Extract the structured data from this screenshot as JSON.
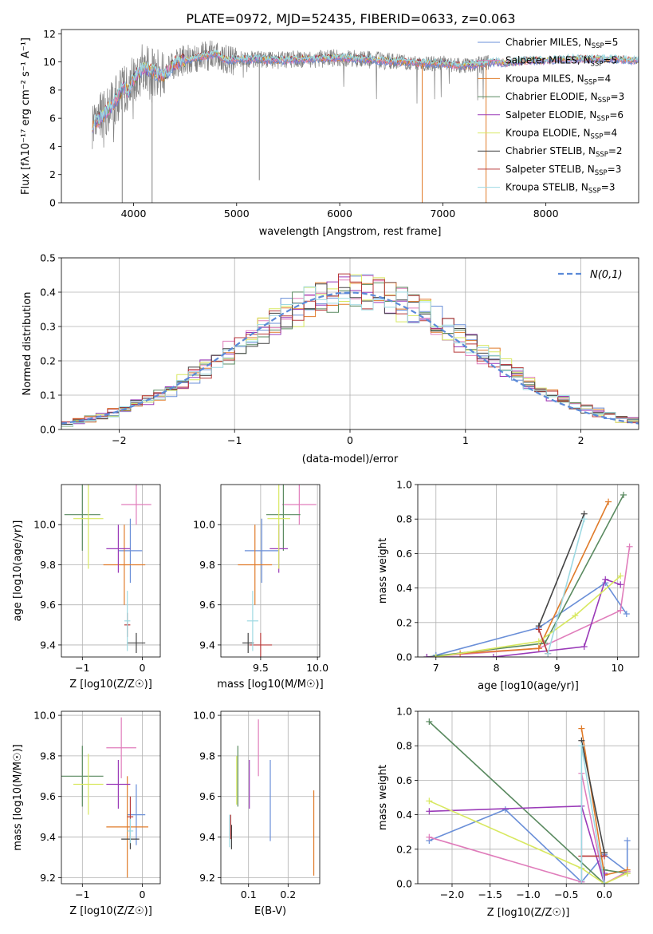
{
  "figure_title": "PLATE=0972, MJD=52435, FIBERID=0633, z=0.063",
  "colors": {
    "spectrum_data": "#808080",
    "gaussian": "#5b8ad8",
    "grid": "#b0b0b0",
    "models": [
      "#6a8fd8",
      "#e07dbb",
      "#e07b2a",
      "#5a8a60",
      "#9a3ab8",
      "#d8e860",
      "#444444",
      "#b83a3a",
      "#9dd9e2"
    ]
  },
  "chart_data": [
    {
      "id": "spectrum",
      "type": "line",
      "title": "PLATE=0972, MJD=52435, FIBERID=0633, z=0.063",
      "xlabel": "wavelength [Angstrom, rest frame]",
      "ylabel": "Flux [fλ10⁻¹⁷ erg cm⁻² s⁻¹ A⁻¹]",
      "xlim": [
        3300,
        8900
      ],
      "ylim": [
        0,
        12.3
      ],
      "xticks": [
        4000,
        5000,
        6000,
        7000,
        8000
      ],
      "yticks": [
        0,
        2,
        4,
        6,
        8,
        10,
        12
      ],
      "grid": false,
      "legend_position": "upper right",
      "legend": [
        {
          "prefix": "Chabrier MILES, N",
          "sub": "SSP",
          "suffix": "=5"
        },
        {
          "prefix": "Salpeter MILES, N",
          "sub": "SSP",
          "suffix": "=5"
        },
        {
          "prefix": "Kroupa MILES, N",
          "sub": "SSP",
          "suffix": "=4"
        },
        {
          "prefix": "Chabrier ELODIE, N",
          "sub": "SSP",
          "suffix": "=3"
        },
        {
          "prefix": "Salpeter ELODIE, N",
          "sub": "SSP",
          "suffix": "=6"
        },
        {
          "prefix": "Kroupa ELODIE, N",
          "sub": "SSP",
          "suffix": "=4"
        },
        {
          "prefix": "Chabrier STELIB, N",
          "sub": "SSP",
          "suffix": "=2"
        },
        {
          "prefix": "Salpeter STELIB, N",
          "sub": "SSP",
          "suffix": "=3"
        },
        {
          "prefix": "Kroupa STELIB, N",
          "sub": "SSP",
          "suffix": "=3"
        }
      ],
      "continuum_model": {
        "x": [
          3600,
          3700,
          3800,
          3850,
          3900,
          3950,
          4000,
          4100,
          4200,
          4300,
          4400,
          4500,
          4600,
          4700,
          4800,
          4900,
          5000,
          5200,
          5400,
          5600,
          5800,
          6000,
          6200,
          6400,
          6600,
          6800,
          7000,
          7200,
          7400,
          7500,
          7600,
          7800,
          8000,
          8200,
          8400,
          8600,
          8900
        ],
        "y": [
          5.5,
          6.2,
          7.0,
          7.5,
          8.3,
          7.9,
          8.8,
          9.6,
          9.3,
          9.0,
          9.9,
          10.1,
          10.3,
          10.4,
          10.6,
          10.1,
          10.2,
          10.2,
          10.1,
          10.2,
          10.2,
          10.3,
          10.2,
          10.1,
          10.0,
          9.9,
          9.9,
          9.7,
          9.9,
          10.0,
          9.9,
          10.1,
          10.1,
          10.2,
          10.2,
          10.2,
          10.1
        ]
      },
      "absorption_dips": [
        {
          "x": 3890,
          "y": 0.0
        },
        {
          "x": 4180,
          "y": 0.0
        },
        {
          "x": 5220,
          "y": 1.6
        },
        {
          "x": 6800,
          "y": 1.2
        },
        {
          "x": 6800,
          "y": 0.0,
          "series": 2
        },
        {
          "x": 7420,
          "y": 0.0,
          "series": 2
        }
      ]
    },
    {
      "id": "residual-histogram",
      "type": "line",
      "xlabel": "(data-model)/error",
      "ylabel": "Normed distribution",
      "xlim": [
        -2.5,
        2.5
      ],
      "ylim": [
        0,
        0.5
      ],
      "xticks": [
        -2,
        -1,
        0,
        1,
        2
      ],
      "yticks": [
        0.0,
        0.1,
        0.2,
        0.3,
        0.4,
        0.5
      ],
      "grid": true,
      "legend_position": "upper right",
      "legend": [
        {
          "label": "N(0,1)",
          "style": "dashed"
        }
      ],
      "bin_width": 0.1,
      "reference_curve": "standard normal density"
    },
    {
      "id": "age-vs-z",
      "type": "scatter",
      "xlabel": "Z [log10(Z/Z☉)]",
      "ylabel": "age [log10(age/yr)]",
      "xlim": [
        -1.35,
        0.3
      ],
      "ylim": [
        9.34,
        10.2
      ],
      "xticks": [
        -1,
        0
      ],
      "yticks": [
        9.4,
        9.6,
        9.8,
        10.0
      ],
      "grid": true,
      "points": [
        {
          "series": 0,
          "x": -0.2,
          "y": 9.87,
          "xerr": 0.2,
          "yerr": 0.16
        },
        {
          "series": 1,
          "x": -0.1,
          "y": 10.1,
          "xerr": 0.25,
          "yerr": 0.1
        },
        {
          "series": 2,
          "x": -0.3,
          "y": 9.8,
          "xerr": 0.35,
          "yerr": 0.2
        },
        {
          "series": 3,
          "x": -1.0,
          "y": 10.05,
          "xerr": 0.3,
          "yerr": 0.18
        },
        {
          "series": 4,
          "x": -0.4,
          "y": 9.88,
          "xerr": 0.2,
          "yerr": 0.12
        },
        {
          "series": 5,
          "x": -0.9,
          "y": 10.03,
          "xerr": 0.25,
          "yerr": 0.25
        },
        {
          "series": 6,
          "x": -0.1,
          "y": 9.41,
          "xerr": 0.15,
          "yerr": 0.05
        },
        {
          "series": 7,
          "x": -0.25,
          "y": 9.5,
          "xerr": 0.05,
          "yerr": 0.06
        },
        {
          "series": 8,
          "x": -0.25,
          "y": 9.52,
          "xerr": 0.05,
          "yerr": 0.15
        }
      ]
    },
    {
      "id": "age-vs-mass",
      "type": "scatter",
      "xlabel": "mass [log10(M/M☉)]",
      "ylabel": "",
      "xlim": [
        9.15,
        10.02
      ],
      "ylim": [
        9.34,
        10.2
      ],
      "xticks": [
        9.5,
        10.0
      ],
      "yticks": [
        9.4,
        9.6,
        9.8,
        10.0
      ],
      "grid": true,
      "points": [
        {
          "series": 0,
          "x": 9.51,
          "y": 9.87,
          "xerr": 0.15,
          "yerr": 0.16
        },
        {
          "series": 1,
          "x": 9.84,
          "y": 10.1,
          "xerr": 0.15,
          "yerr": 0.1
        },
        {
          "series": 2,
          "x": 9.45,
          "y": 9.8,
          "xerr": 0.15,
          "yerr": 0.2
        },
        {
          "series": 3,
          "x": 9.7,
          "y": 10.05,
          "xerr": 0.15,
          "yerr": 0.18
        },
        {
          "series": 4,
          "x": 9.66,
          "y": 9.88,
          "xerr": 0.08,
          "yerr": 0.12
        },
        {
          "series": 5,
          "x": 9.66,
          "y": 10.03,
          "xerr": 0.1,
          "yerr": 0.25
        },
        {
          "series": 6,
          "x": 9.39,
          "y": 9.41,
          "xerr": 0.05,
          "yerr": 0.05
        },
        {
          "series": 7,
          "x": 9.5,
          "y": 9.4,
          "xerr": 0.1,
          "yerr": 0.06
        },
        {
          "series": 8,
          "x": 9.43,
          "y": 9.52,
          "xerr": 0.05,
          "yerr": 0.15
        }
      ]
    },
    {
      "id": "mass-weight-vs-age",
      "type": "line",
      "xlabel": "age [log10(age/yr)]",
      "ylabel": "mass weight",
      "xlim": [
        6.7,
        10.35
      ],
      "ylim": [
        0,
        1.0
      ],
      "xticks": [
        7,
        8,
        9,
        10
      ],
      "yticks": [
        0.0,
        0.2,
        0.4,
        0.6,
        0.8,
        1.0
      ],
      "grid": true,
      "series": [
        {
          "index": 0,
          "x": [
            7.0,
            8.7,
            9.8,
            10.15
          ],
          "y": [
            0.01,
            0.17,
            0.43,
            0.25
          ]
        },
        {
          "index": 1,
          "x": [
            6.85,
            8.7,
            10.05,
            10.2
          ],
          "y": [
            0.0,
            0.05,
            0.27,
            0.64
          ]
        },
        {
          "index": 2,
          "x": [
            7.4,
            8.7,
            9.85
          ],
          "y": [
            0.02,
            0.05,
            0.9
          ]
        },
        {
          "index": 3,
          "x": [
            6.85,
            8.8,
            10.1
          ],
          "y": [
            0.0,
            0.08,
            0.94
          ]
        },
        {
          "index": 4,
          "x": [
            6.85,
            7.95,
            9.45,
            9.8,
            10.05
          ],
          "y": [
            0.0,
            0.0,
            0.06,
            0.45,
            0.42
          ]
        },
        {
          "index": 5,
          "x": [
            7.0,
            8.7,
            9.3,
            10.05
          ],
          "y": [
            0.0,
            0.09,
            0.24,
            0.47
          ]
        },
        {
          "index": 6,
          "x": [
            8.7,
            9.45
          ],
          "y": [
            0.18,
            0.83
          ]
        },
        {
          "index": 7,
          "x": [
            8.7,
            8.85
          ],
          "y": [
            0.16,
            0.02
          ]
        },
        {
          "index": 8,
          "x": [
            8.85,
            9.45
          ],
          "y": [
            0.02,
            0.8
          ]
        }
      ]
    },
    {
      "id": "mass-vs-z",
      "type": "scatter",
      "xlabel": "Z [log10(Z/Z☉)]",
      "ylabel": "mass [log10(M/M☉)]",
      "xlim": [
        -1.35,
        0.3
      ],
      "ylim": [
        9.17,
        10.02
      ],
      "xticks": [
        -1,
        0
      ],
      "yticks": [
        9.2,
        9.4,
        9.6,
        9.8,
        10.0
      ],
      "grid": true,
      "points": [
        {
          "series": 0,
          "x": -0.1,
          "y": 9.51,
          "xerr": 0.15,
          "yerr": 0.15
        },
        {
          "series": 1,
          "x": -0.35,
          "y": 9.84,
          "xerr": 0.25,
          "yerr": 0.15
        },
        {
          "series": 2,
          "x": -0.25,
          "y": 9.45,
          "xerr": 0.35,
          "yerr": 0.25
        },
        {
          "series": 3,
          "x": -1.0,
          "y": 9.7,
          "xerr": 0.35,
          "yerr": 0.15
        },
        {
          "series": 4,
          "x": -0.4,
          "y": 9.66,
          "xerr": 0.2,
          "yerr": 0.12
        },
        {
          "series": 5,
          "x": -0.9,
          "y": 9.66,
          "xerr": 0.25,
          "yerr": 0.15
        },
        {
          "series": 6,
          "x": -0.2,
          "y": 9.39,
          "xerr": 0.15,
          "yerr": 0.05
        },
        {
          "series": 7,
          "x": -0.2,
          "y": 9.5,
          "xerr": 0.05,
          "yerr": 0.1
        },
        {
          "series": 8,
          "x": -0.2,
          "y": 9.43,
          "xerr": 0.05,
          "yerr": 0.06
        }
      ]
    },
    {
      "id": "mass-vs-ebv",
      "type": "scatter",
      "xlabel": "E(B-V)",
      "ylabel": "",
      "xlim": [
        0.03,
        0.28
      ],
      "ylim": [
        9.17,
        10.02
      ],
      "xticks": [
        0.1,
        0.2
      ],
      "yticks": [
        9.2,
        9.4,
        9.6,
        9.8,
        10.0
      ],
      "grid": true,
      "points": [
        {
          "series": 0,
          "x": 0.155,
          "y": 9.58,
          "xerr": 0,
          "yerr": 0.2
        },
        {
          "series": 1,
          "x": 0.125,
          "y": 9.84,
          "xerr": 0,
          "yerr": 0.14
        },
        {
          "series": 2,
          "x": 0.265,
          "y": 9.42,
          "xerr": 0,
          "yerr": 0.21
        },
        {
          "series": 3,
          "x": 0.073,
          "y": 9.7,
          "xerr": 0,
          "yerr": 0.15
        },
        {
          "series": 4,
          "x": 0.102,
          "y": 9.66,
          "xerr": 0,
          "yerr": 0.12
        },
        {
          "series": 5,
          "x": 0.07,
          "y": 9.68,
          "xerr": 0,
          "yerr": 0.12
        },
        {
          "series": 6,
          "x": 0.057,
          "y": 9.4,
          "xerr": 0,
          "yerr": 0.06
        },
        {
          "series": 7,
          "x": 0.055,
          "y": 9.45,
          "xerr": 0,
          "yerr": 0.06
        },
        {
          "series": 8,
          "x": 0.052,
          "y": 9.43,
          "xerr": 0,
          "yerr": 0.08
        }
      ]
    },
    {
      "id": "mass-weight-vs-z",
      "type": "line",
      "xlabel": "Z [log10(Z/Z☉)]",
      "ylabel": "mass weight",
      "xlim": [
        -2.45,
        0.45
      ],
      "ylim": [
        0,
        1.0
      ],
      "xticks": [
        -2.0,
        -1.5,
        -1.0,
        -0.5,
        0.0
      ],
      "yticks": [
        0.0,
        0.2,
        0.4,
        0.6,
        0.8,
        1.0
      ],
      "grid": true,
      "series": [
        {
          "index": 0,
          "x": [
            -2.3,
            -1.3,
            -0.3,
            0.0,
            0.3,
            0.3
          ],
          "y": [
            0.25,
            0.43,
            0.01,
            0.17,
            0.07,
            0.25
          ]
        },
        {
          "index": 1,
          "x": [
            -2.3,
            -0.3,
            -0.3,
            0.0,
            0.3
          ],
          "y": [
            0.27,
            0.01,
            0.64,
            0.0,
            0.07
          ]
        },
        {
          "index": 2,
          "x": [
            -0.3,
            0.0,
            0.3
          ],
          "y": [
            0.9,
            0.05,
            0.08
          ]
        },
        {
          "index": 3,
          "x": [
            -2.3,
            0.0,
            0.0,
            0.3
          ],
          "y": [
            0.94,
            0.0,
            0.08,
            0.06
          ]
        },
        {
          "index": 4,
          "x": [
            -2.3,
            -0.3,
            0.0,
            0.0
          ],
          "y": [
            0.42,
            0.45,
            0.0,
            0.06
          ]
        },
        {
          "index": 5,
          "x": [
            -2.3,
            -0.3,
            0.0,
            0.3
          ],
          "y": [
            0.48,
            0.09,
            0.0,
            0.06
          ]
        },
        {
          "index": 6,
          "x": [
            -0.3,
            0.0,
            0.0
          ],
          "y": [
            0.83,
            0.18,
            0.18
          ]
        },
        {
          "index": 7,
          "x": [
            -0.3,
            0.0
          ],
          "y": [
            0.16,
            0.16
          ]
        },
        {
          "index": 8,
          "x": [
            -0.3,
            -0.3,
            0.0
          ],
          "y": [
            0.02,
            0.8,
            0.0
          ]
        }
      ]
    }
  ]
}
